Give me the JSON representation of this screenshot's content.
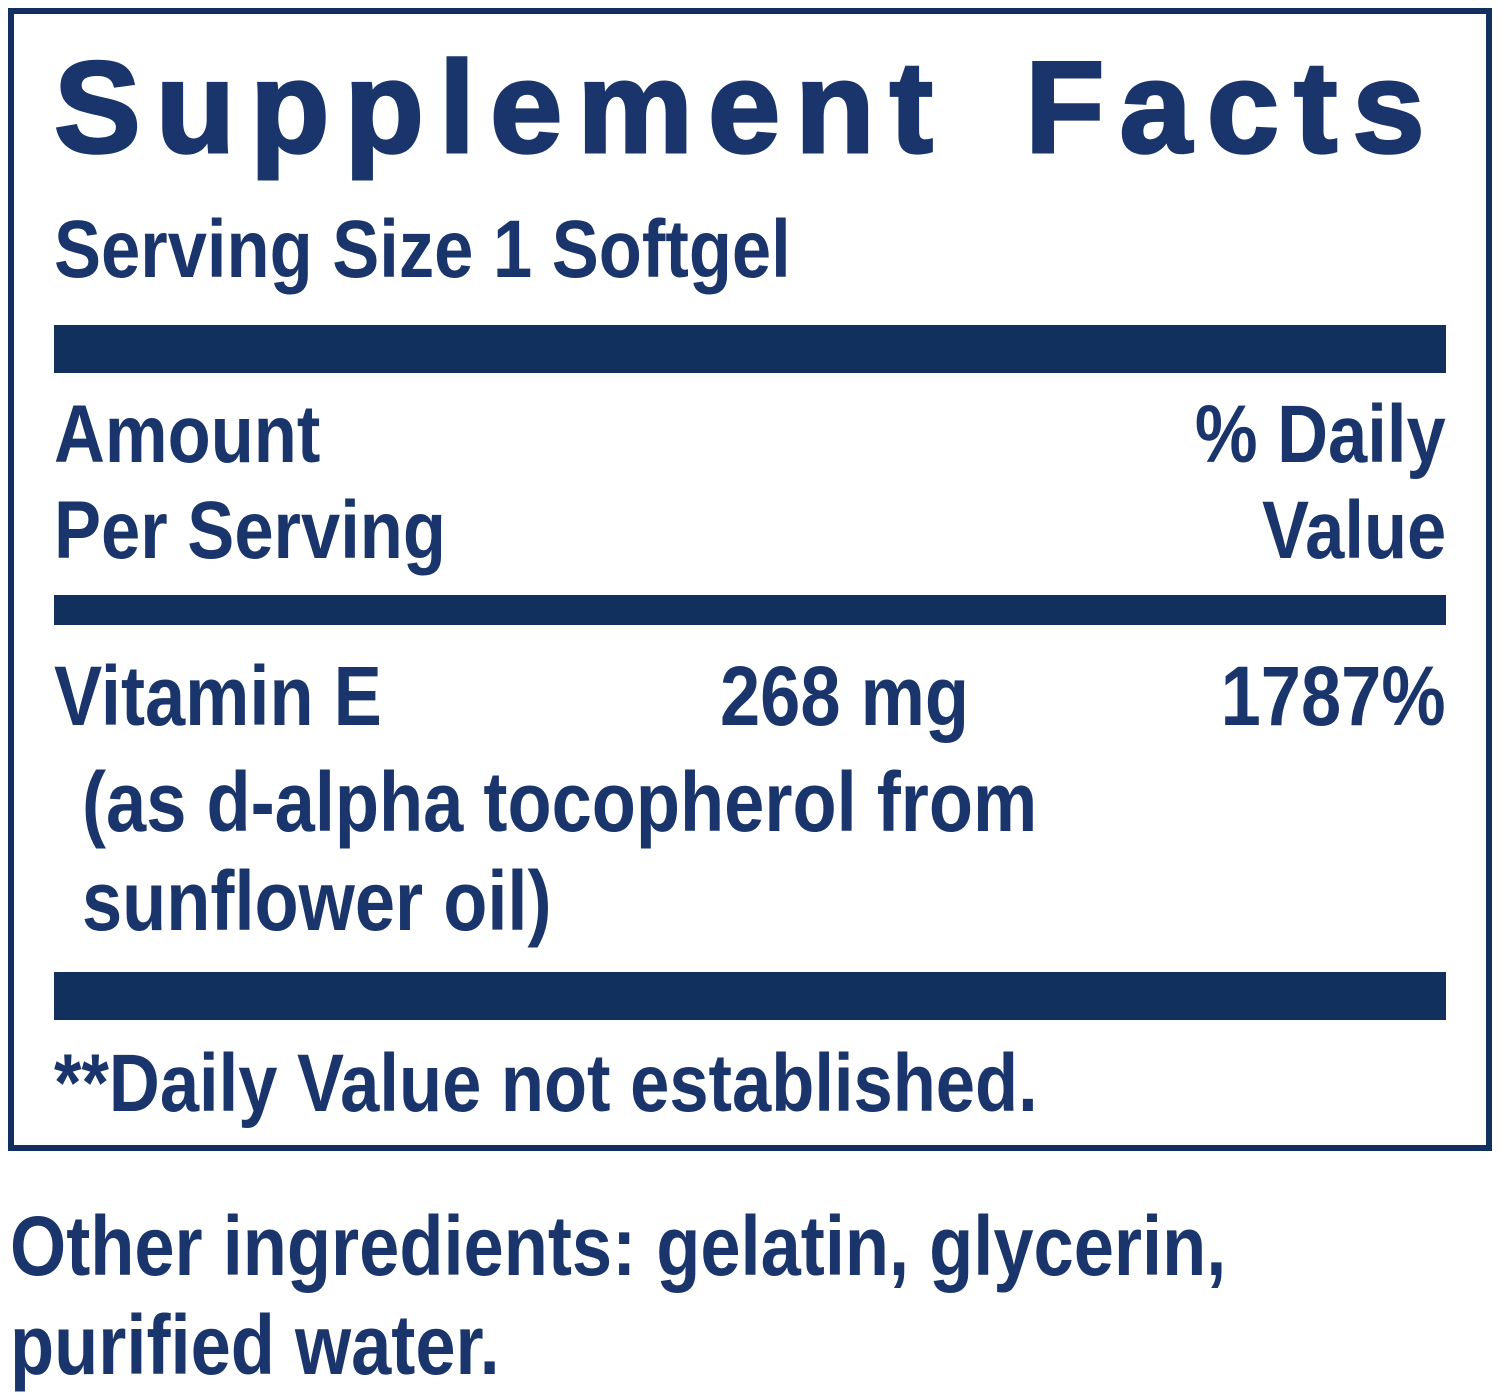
{
  "colors": {
    "navy_bar": "#12305e",
    "navy_text": "#1a356b",
    "background": "#ffffff"
  },
  "panel": {
    "title": "Supplement Facts",
    "serving_size_label": "Serving Size 1 Softgel",
    "columns": {
      "amount_line1": "Amount",
      "amount_line2": "Per Serving",
      "dv_line1": "% Daily",
      "dv_line2": "Value"
    },
    "rows": [
      {
        "name": "Vitamin E",
        "amount": "268 mg",
        "daily_value": "1787%",
        "detail_line1": "(as d-alpha tocopherol from",
        "detail_line2": "sunflower oil)"
      }
    ],
    "footnote": "**Daily Value not established."
  },
  "other_ingredients": {
    "line1": "Other ingredients: gelatin, glycerin,",
    "line2": "purified water."
  }
}
